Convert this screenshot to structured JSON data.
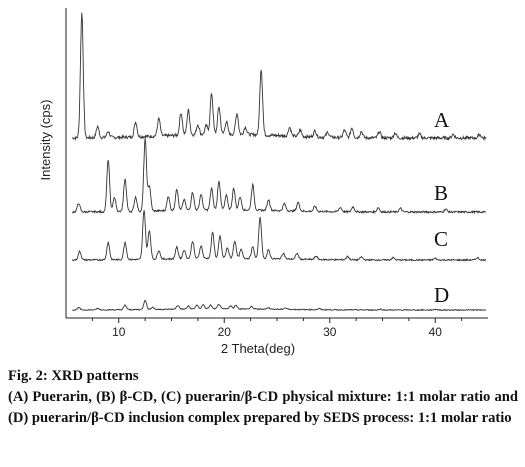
{
  "caption": {
    "title": "Fig. 2: XRD patterns",
    "body": "(A) Puerarin, (B) β-CD, (C) puerarin/β-CD physical mixture: 1:1 molar ratio and (D) puerarin/β-CD inclusion complex prepared by SEDS process: 1:1 molar ratio"
  },
  "chart_data": {
    "type": "line",
    "title": "",
    "xlabel": "2 Theta(deg)",
    "ylabel": "Intensity (cps)",
    "xlim": [
      5,
      45
    ],
    "x_ticks": [
      10,
      20,
      30,
      40
    ],
    "x_tick_labels": [
      "10",
      "20",
      "30",
      "40"
    ],
    "y_ticks_shown": false,
    "grid": false,
    "legend": "none",
    "series": [
      {
        "name": "A",
        "color": "#333333",
        "peaks": [
          [
            6.5,
            1.0
          ],
          [
            8.0,
            0.09
          ],
          [
            9.0,
            0.05
          ],
          [
            11.6,
            0.12
          ],
          [
            13.8,
            0.14
          ],
          [
            15.9,
            0.18
          ],
          [
            16.6,
            0.2
          ],
          [
            17.5,
            0.08
          ],
          [
            18.3,
            0.07
          ],
          [
            18.8,
            0.33
          ],
          [
            19.5,
            0.22
          ],
          [
            20.2,
            0.1
          ],
          [
            21.2,
            0.17
          ],
          [
            22.0,
            0.06
          ],
          [
            23.5,
            0.53
          ],
          [
            26.2,
            0.07
          ],
          [
            27.2,
            0.05
          ],
          [
            28.6,
            0.05
          ],
          [
            29.8,
            0.04
          ],
          [
            31.4,
            0.06
          ],
          [
            32.1,
            0.08
          ],
          [
            33.0,
            0.05
          ],
          [
            34.7,
            0.05
          ],
          [
            36.2,
            0.04
          ],
          [
            38.5,
            0.03
          ],
          [
            41.7,
            0.03
          ],
          [
            44.2,
            0.03
          ]
        ]
      },
      {
        "name": "B",
        "color": "#333333",
        "peaks": [
          [
            6.2,
            0.12
          ],
          [
            9.0,
            0.72
          ],
          [
            9.6,
            0.2
          ],
          [
            10.6,
            0.45
          ],
          [
            11.6,
            0.2
          ],
          [
            12.5,
            1.0
          ],
          [
            12.9,
            0.35
          ],
          [
            14.7,
            0.2
          ],
          [
            15.5,
            0.3
          ],
          [
            16.2,
            0.15
          ],
          [
            17.0,
            0.25
          ],
          [
            17.8,
            0.22
          ],
          [
            18.8,
            0.3
          ],
          [
            19.5,
            0.4
          ],
          [
            20.2,
            0.2
          ],
          [
            20.9,
            0.3
          ],
          [
            21.5,
            0.18
          ],
          [
            22.7,
            0.35
          ],
          [
            24.2,
            0.15
          ],
          [
            25.7,
            0.1
          ],
          [
            27.0,
            0.12
          ],
          [
            28.6,
            0.07
          ],
          [
            31.0,
            0.06
          ],
          [
            32.2,
            0.07
          ],
          [
            34.6,
            0.06
          ],
          [
            36.7,
            0.05
          ],
          [
            41.0,
            0.04
          ]
        ]
      },
      {
        "name": "C",
        "color": "#333333",
        "peaks": [
          [
            6.3,
            0.15
          ],
          [
            9.0,
            0.3
          ],
          [
            10.6,
            0.3
          ],
          [
            12.4,
            0.85
          ],
          [
            12.9,
            0.5
          ],
          [
            13.8,
            0.15
          ],
          [
            15.5,
            0.2
          ],
          [
            16.2,
            0.15
          ],
          [
            17.0,
            0.3
          ],
          [
            17.8,
            0.22
          ],
          [
            18.9,
            0.45
          ],
          [
            19.6,
            0.38
          ],
          [
            20.3,
            0.18
          ],
          [
            21.0,
            0.3
          ],
          [
            21.6,
            0.15
          ],
          [
            22.7,
            0.2
          ],
          [
            23.4,
            0.72
          ],
          [
            24.2,
            0.15
          ],
          [
            25.6,
            0.1
          ],
          [
            26.9,
            0.1
          ],
          [
            28.7,
            0.06
          ],
          [
            31.7,
            0.06
          ],
          [
            33.0,
            0.05
          ],
          [
            36.0,
            0.04
          ],
          [
            40.0,
            0.03
          ],
          [
            44.0,
            0.04
          ]
        ]
      },
      {
        "name": "D",
        "color": "#333333",
        "peaks": [
          [
            6.2,
            0.06
          ],
          [
            8.0,
            0.04
          ],
          [
            10.6,
            0.12
          ],
          [
            12.5,
            0.25
          ],
          [
            13.2,
            0.06
          ],
          [
            15.6,
            0.1
          ],
          [
            16.6,
            0.08
          ],
          [
            17.4,
            0.1
          ],
          [
            18.0,
            0.11
          ],
          [
            18.7,
            0.1
          ],
          [
            19.5,
            0.12
          ],
          [
            20.6,
            0.08
          ],
          [
            21.1,
            0.1
          ],
          [
            22.6,
            0.06
          ],
          [
            24.2,
            0.04
          ],
          [
            25.8,
            0.04
          ],
          [
            29.0,
            0.03
          ],
          [
            34.8,
            0.02
          ],
          [
            40.0,
            0.02
          ]
        ]
      }
    ]
  }
}
